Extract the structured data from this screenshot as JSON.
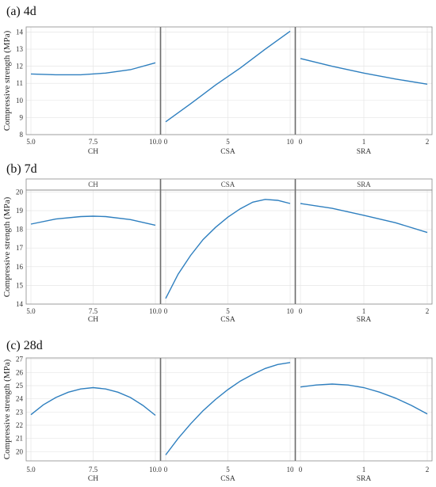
{
  "chart_data": [
    {
      "type": "line",
      "title": "(a) 4d",
      "ylabel": "Compressive strength (MPa)",
      "ylim": [
        8,
        14.3
      ],
      "yticks": [
        8,
        9,
        10,
        11,
        12,
        13,
        14
      ],
      "strip_labels": false,
      "grid": true,
      "panels": [
        {
          "xlabel": "CH",
          "xlim": [
            5,
            10
          ],
          "xtick_values": [
            5,
            7.5,
            10
          ],
          "xtick_labels": [
            "5.0",
            "7.5",
            "10.0"
          ],
          "x": [
            5,
            6,
            7,
            8,
            9,
            10
          ],
          "y": [
            11.55,
            11.5,
            11.5,
            11.6,
            11.8,
            12.2
          ]
        },
        {
          "xlabel": "CSA",
          "xlim": [
            0,
            10
          ],
          "xtick_values": [
            0,
            5,
            10
          ],
          "xtick_labels": [
            "0",
            "5",
            "10"
          ],
          "x": [
            0,
            2,
            4,
            6,
            8,
            10
          ],
          "y": [
            8.75,
            9.8,
            10.9,
            11.9,
            13.0,
            14.05
          ]
        },
        {
          "xlabel": "SRA",
          "xlim": [
            0,
            2
          ],
          "xtick_values": [
            0,
            1,
            2
          ],
          "xtick_labels": [
            "0",
            "1",
            "2"
          ],
          "x": [
            0,
            0.5,
            1,
            1.5,
            2
          ],
          "y": [
            12.45,
            12.0,
            11.6,
            11.25,
            10.95
          ]
        }
      ]
    },
    {
      "type": "line",
      "title": "(b) 7d",
      "ylabel": "Compressive strength (MPa)",
      "ylim": [
        14,
        20.1
      ],
      "yticks": [
        14,
        15,
        16,
        17,
        18,
        19,
        20
      ],
      "strip_labels": true,
      "grid": true,
      "panels": [
        {
          "strip": "CH",
          "xlabel": "CH",
          "xlim": [
            5,
            10
          ],
          "xtick_values": [
            5,
            7.5,
            10
          ],
          "xtick_labels": [
            "5.0",
            "7.5",
            "10.0"
          ],
          "x": [
            5,
            6,
            7,
            7.5,
            8,
            9,
            10
          ],
          "y": [
            18.28,
            18.55,
            18.68,
            18.7,
            18.68,
            18.52,
            18.22
          ]
        },
        {
          "strip": "CSA",
          "xlabel": "CSA",
          "xlim": [
            0,
            10
          ],
          "xtick_values": [
            0,
            5,
            10
          ],
          "xtick_labels": [
            "0",
            "5",
            "10"
          ],
          "x": [
            0,
            1,
            2,
            3,
            4,
            5,
            6,
            7,
            8,
            9,
            10
          ],
          "y": [
            14.3,
            15.6,
            16.6,
            17.45,
            18.1,
            18.65,
            19.1,
            19.45,
            19.6,
            19.55,
            19.38
          ]
        },
        {
          "strip": "SRA",
          "xlabel": "SRA",
          "xlim": [
            0,
            2
          ],
          "xtick_values": [
            0,
            1,
            2
          ],
          "xtick_labels": [
            "0",
            "1",
            "2"
          ],
          "x": [
            0,
            0.5,
            1,
            1.5,
            2
          ],
          "y": [
            19.38,
            19.12,
            18.75,
            18.35,
            17.83
          ]
        }
      ]
    },
    {
      "type": "line",
      "title": "(c) 28d",
      "ylabel": "Compressive strength (MPa)",
      "ylim": [
        19.3,
        27.1
      ],
      "yticks": [
        19,
        20,
        21,
        22,
        23,
        24,
        25,
        26,
        27
      ],
      "strip_labels": false,
      "grid": true,
      "panels": [
        {
          "xlabel": "CH",
          "xlim": [
            5,
            10
          ],
          "xtick_values": [
            5,
            7.5,
            10
          ],
          "xtick_labels": [
            "5.0",
            "7.5",
            "10.0"
          ],
          "x": [
            5,
            5.5,
            6,
            6.5,
            7,
            7.5,
            8,
            8.5,
            9,
            9.5,
            10
          ],
          "y": [
            22.8,
            23.55,
            24.1,
            24.5,
            24.75,
            24.85,
            24.75,
            24.5,
            24.1,
            23.5,
            22.75
          ]
        },
        {
          "xlabel": "CSA",
          "xlim": [
            0,
            10
          ],
          "xtick_values": [
            0,
            5,
            10
          ],
          "xtick_labels": [
            "0",
            "5",
            "10"
          ],
          "x": [
            0,
            1,
            2,
            3,
            4,
            5,
            6,
            7,
            8,
            9,
            10
          ],
          "y": [
            19.75,
            21.0,
            22.1,
            23.1,
            23.95,
            24.7,
            25.35,
            25.85,
            26.3,
            26.6,
            26.75
          ]
        },
        {
          "xlabel": "SRA",
          "xlim": [
            0,
            2
          ],
          "xtick_values": [
            0,
            1,
            2
          ],
          "xtick_labels": [
            "0",
            "1",
            "2"
          ],
          "x": [
            0,
            0.25,
            0.5,
            0.75,
            1,
            1.25,
            1.5,
            1.75,
            2
          ],
          "y": [
            24.9,
            25.05,
            25.12,
            25.05,
            24.85,
            24.5,
            24.05,
            23.5,
            22.85
          ]
        }
      ]
    }
  ],
  "colors": {
    "series": "#2e7fbf",
    "separator": "#6d6d6d",
    "frame": "#8a8a8a",
    "grid": "#e6e6e6",
    "strip_fill": "#ffffff"
  }
}
